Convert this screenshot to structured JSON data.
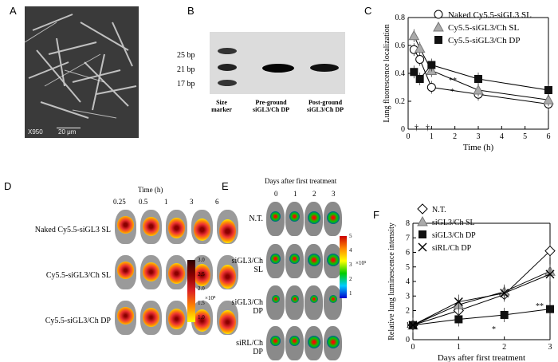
{
  "panels": {
    "a": {
      "letter": "A",
      "scale_left": "X950",
      "scale_right": "20 μm"
    },
    "b": {
      "letter": "B",
      "ladder": [
        "25 bp",
        "21 bp",
        "17 bp"
      ],
      "lanes": [
        "Size\nmarker",
        "Pre-ground\nsiGL3/Ch DP",
        "Post-ground\nsiGL3/Ch DP"
      ]
    },
    "c": {
      "letter": "C"
    },
    "d": {
      "letter": "D",
      "time_title": "Time (h)",
      "times": [
        "0.25",
        "0.5",
        "1",
        "3",
        "6"
      ],
      "rows": [
        "Naked Cy5.5-siGL3 SL",
        "Cy5.5-siGL3/Ch SL",
        "Cy5.5-siGL3/Ch DP"
      ],
      "colorbar": {
        "ticks": [
          "3.0",
          "2.5",
          "2.0",
          "1.5",
          "1.0"
        ],
        "unit": "×10⁸"
      }
    },
    "e": {
      "letter": "E",
      "title": "Days after first treatment",
      "days": [
        "0",
        "1",
        "2",
        "3"
      ],
      "rows": [
        "N.T.",
        "siGL3/Ch SL",
        "siGL3/Ch DP",
        "siRL/Ch DP"
      ],
      "colorbar": {
        "ticks": [
          "5",
          "4",
          "3",
          "2",
          "1"
        ],
        "unit": "×10⁵"
      }
    },
    "f": {
      "letter": "F"
    }
  },
  "chart_data": [
    {
      "id": "C",
      "type": "line",
      "xlabel": "Time (h)",
      "ylabel": "Lung fluorescence localization",
      "xlim": [
        0,
        6
      ],
      "ylim": [
        0,
        0.8
      ],
      "xticks": [
        "0",
        "1",
        "2",
        "3",
        "4",
        "5",
        "6"
      ],
      "yticks": [
        "0",
        "0.2",
        "0.4",
        "0.6",
        "0.8"
      ],
      "x": [
        0.25,
        0.5,
        1,
        3,
        6
      ],
      "series": [
        {
          "name": "Naked Cy5.5-siGL3 SL",
          "marker": "circle",
          "values": [
            0.57,
            0.5,
            0.3,
            0.25,
            0.18
          ]
        },
        {
          "name": "Cy5.5-siGL3/Ch SL",
          "marker": "triangle",
          "values": [
            0.67,
            0.58,
            0.42,
            0.28,
            0.21
          ]
        },
        {
          "name": "Cy5.5-siGL3/Ch DP",
          "marker": "square",
          "values": [
            0.41,
            0.36,
            0.46,
            0.36,
            0.28
          ]
        }
      ],
      "annotations": [
        "**",
        "*",
        "†",
        "†"
      ]
    },
    {
      "id": "F",
      "type": "line",
      "xlabel": "Days after first treatment",
      "ylabel": "Relative lung luminescence intensity",
      "xlim": [
        0,
        3
      ],
      "ylim": [
        0,
        8
      ],
      "xticks": [
        "0",
        "1",
        "2",
        "3"
      ],
      "yticks": [
        "0",
        "1",
        "2",
        "3",
        "4",
        "5",
        "6",
        "7",
        "8"
      ],
      "x": [
        0,
        1,
        2,
        3
      ],
      "series": [
        {
          "name": "N.T.",
          "marker": "diamond",
          "values": [
            1,
            2,
            3.1,
            6.1
          ]
        },
        {
          "name": "siGL3/Ch SL",
          "marker": "triangle",
          "values": [
            1,
            2.4,
            3.3,
            4.7
          ]
        },
        {
          "name": "siGL3/Ch DP",
          "marker": "square",
          "values": [
            1,
            1.4,
            1.7,
            2.1
          ]
        },
        {
          "name": "siRL/Ch DP",
          "marker": "cross",
          "values": [
            1,
            2.6,
            3.2,
            4.5
          ]
        }
      ],
      "annotations": [
        "*",
        "**"
      ]
    }
  ]
}
